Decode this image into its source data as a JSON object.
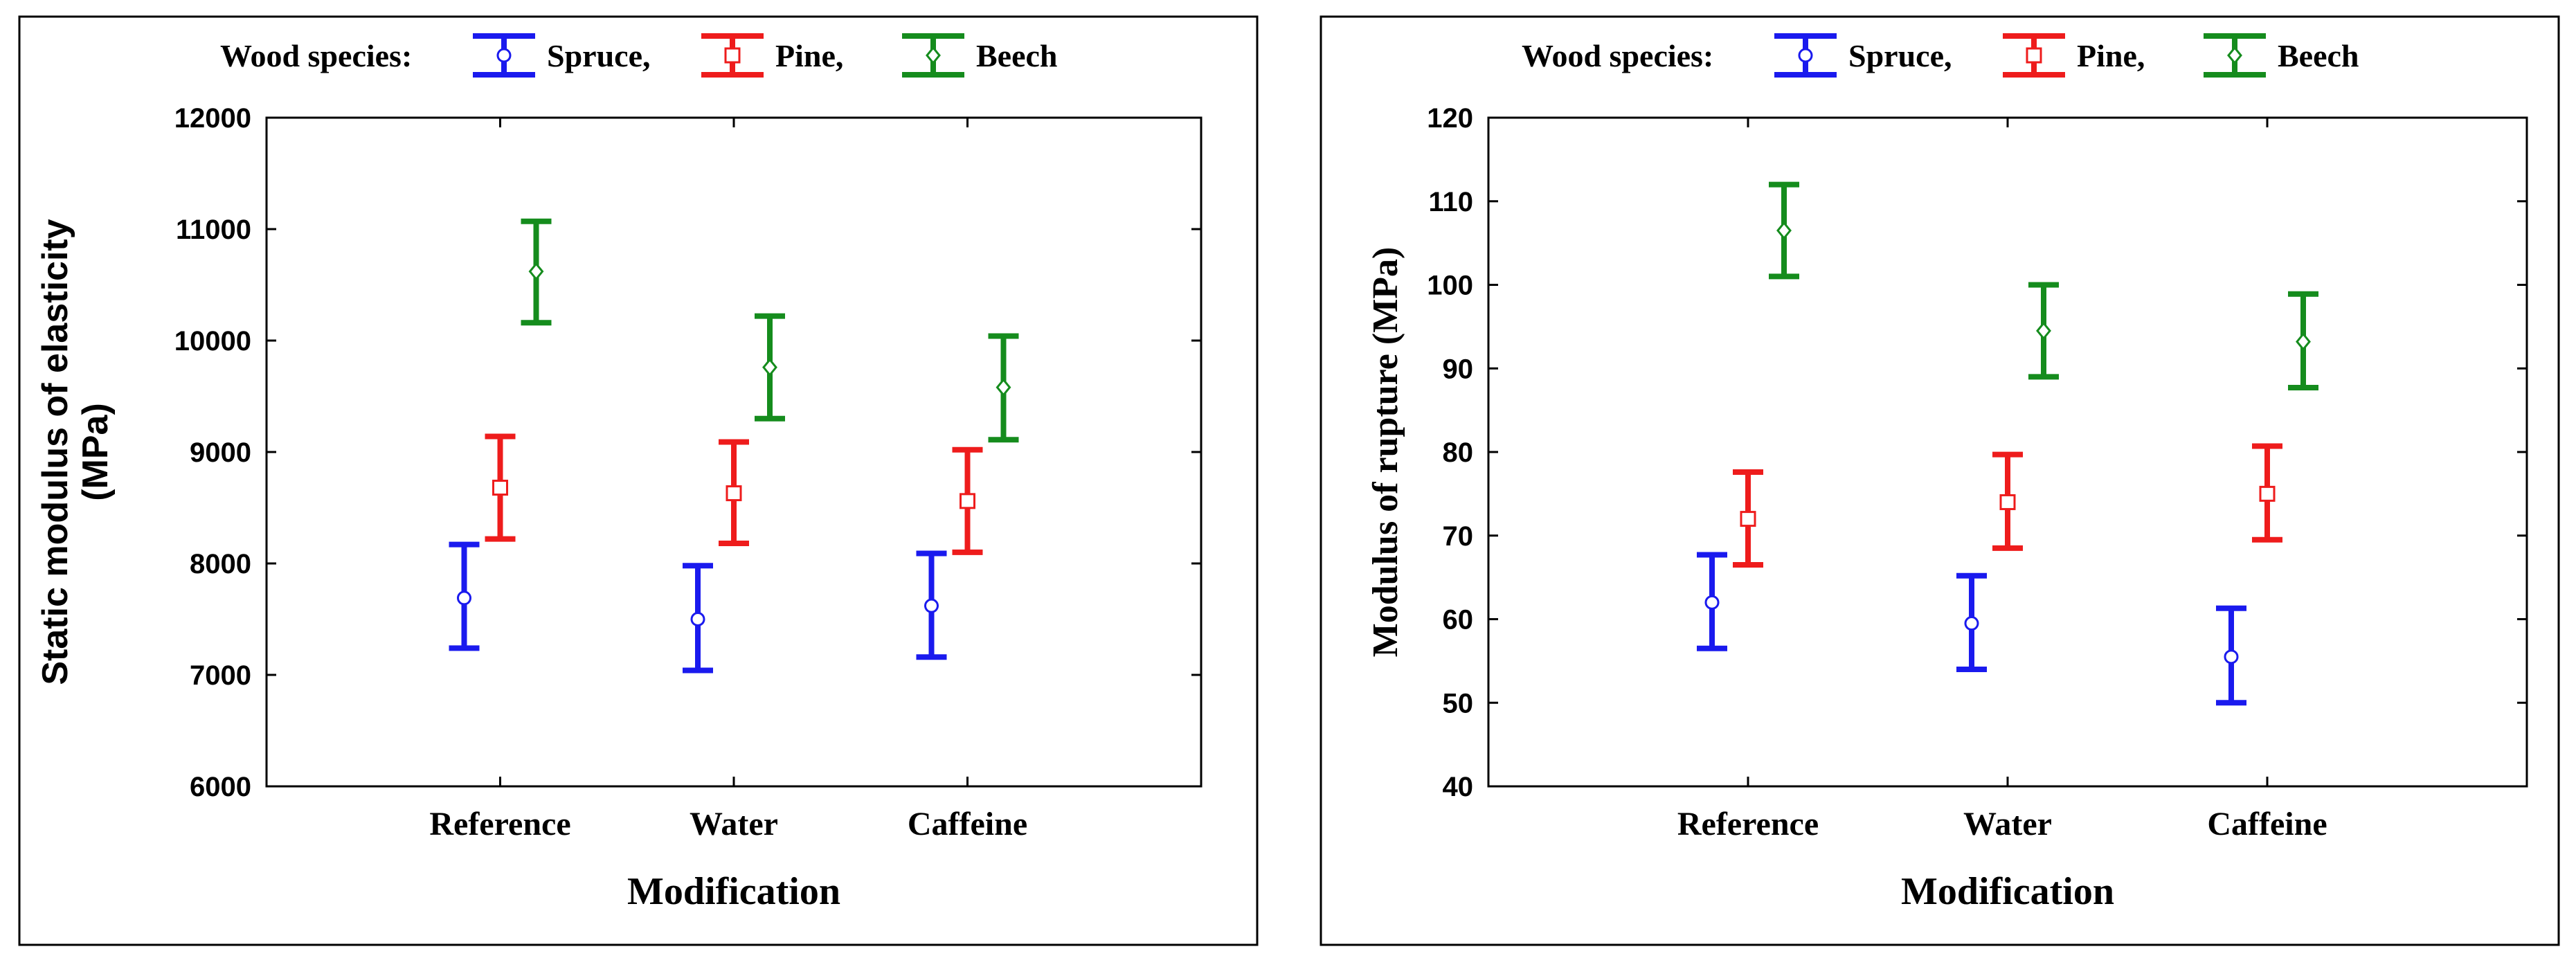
{
  "legend": {
    "title": "Wood species:",
    "entries": [
      "Spruce,",
      "Pine,",
      "Beech"
    ]
  },
  "colors": {
    "Spruce": "#1a1aee",
    "Pine": "#ee1c1c",
    "Beech": "#158c1d"
  },
  "marker_icons": {
    "Spruce": "circle-icon",
    "Pine": "square-icon",
    "Beech": "diamond-icon"
  },
  "chart_data": [
    {
      "type": "errorbar",
      "xlabel": "Modification",
      "ylabel": [
        "Static modulus of elasticity",
        "(MPa)"
      ],
      "categories": [
        "Reference",
        "Water",
        "Caffeine"
      ],
      "ylim": [
        6000,
        12000
      ],
      "yticks": [
        6000,
        7000,
        8000,
        9000,
        10000,
        11000,
        12000
      ],
      "ytick_labels": [
        "6000",
        "7000",
        "8000",
        "9000",
        "10000",
        "11000",
        "12000"
      ],
      "grid": false,
      "legend_position": "top",
      "series": [
        {
          "name": "Spruce",
          "marker": "circle",
          "means": [
            7690,
            7500,
            7620
          ],
          "lower": [
            7240,
            7040,
            7160
          ],
          "upper": [
            8170,
            7980,
            8090
          ]
        },
        {
          "name": "Pine",
          "marker": "square",
          "means": [
            8680,
            8630,
            8560
          ],
          "lower": [
            8220,
            8180,
            8100
          ],
          "upper": [
            9140,
            9090,
            9020
          ]
        },
        {
          "name": "Beech",
          "marker": "diamond",
          "means": [
            10620,
            9760,
            9580
          ],
          "lower": [
            10160,
            9300,
            9110
          ],
          "upper": [
            11070,
            10220,
            10040
          ]
        }
      ]
    },
    {
      "type": "errorbar",
      "xlabel": "Modification",
      "ylabel": [
        "Modulus of rupture (MPa)"
      ],
      "categories": [
        "Reference",
        "Water",
        "Caffeine"
      ],
      "ylim": [
        40,
        120
      ],
      "yticks": [
        40,
        50,
        60,
        70,
        80,
        90,
        100,
        110,
        120
      ],
      "ytick_labels": [
        "40",
        "50",
        "60",
        "70",
        "80",
        "90",
        "100",
        "110",
        "120"
      ],
      "grid": false,
      "legend_position": "top",
      "series": [
        {
          "name": "Spruce",
          "marker": "circle",
          "means": [
            62,
            59.5,
            55.5
          ],
          "lower": [
            56.5,
            54,
            50
          ],
          "upper": [
            67.7,
            65.2,
            61.3
          ]
        },
        {
          "name": "Pine",
          "marker": "square",
          "means": [
            72,
            74,
            75
          ],
          "lower": [
            66.5,
            68.5,
            69.5
          ],
          "upper": [
            77.6,
            79.7,
            80.7
          ]
        },
        {
          "name": "Beech",
          "marker": "diamond",
          "means": [
            106.5,
            94.5,
            93.2
          ],
          "lower": [
            101,
            89,
            87.7
          ],
          "upper": [
            112,
            100,
            98.9
          ]
        }
      ]
    }
  ]
}
